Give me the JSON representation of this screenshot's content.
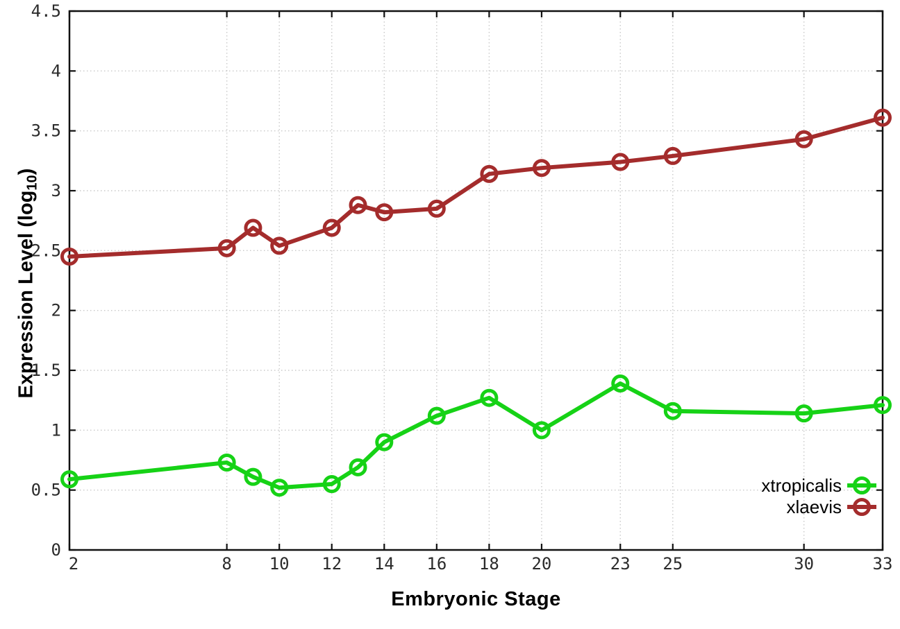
{
  "figure": {
    "xlabel": "Embryonic Stage",
    "ylabel_prefix": "Expression Level (log",
    "ylabel_sub": "10",
    "ylabel_suffix": ")"
  },
  "chart_data": {
    "type": "line",
    "x": [
      2,
      8,
      9,
      10,
      12,
      13,
      14,
      16,
      18,
      20,
      23,
      25,
      30,
      33
    ],
    "series": [
      {
        "name": "xtropicalis",
        "color": "#16d216",
        "values": [
          0.59,
          0.73,
          0.61,
          0.52,
          0.55,
          0.69,
          0.9,
          1.12,
          1.27,
          1.0,
          1.39,
          1.16,
          1.14,
          1.21
        ]
      },
      {
        "name": "xlaevis",
        "color": "#a42c2c",
        "values": [
          2.45,
          2.52,
          2.69,
          2.54,
          2.69,
          2.88,
          2.82,
          2.85,
          3.14,
          3.19,
          3.24,
          3.29,
          3.43,
          3.61
        ]
      }
    ],
    "title": "",
    "xlabel": "Embryonic Stage",
    "ylabel": "Expression Level (log10)",
    "xlim": [
      2,
      33
    ],
    "ylim": [
      0,
      4.5
    ],
    "xticks": [
      2,
      8,
      10,
      12,
      14,
      16,
      18,
      20,
      23,
      25,
      30,
      33
    ],
    "xtick_labels": [
      "2",
      "8",
      "10",
      "12",
      "14",
      "16",
      "18",
      "20",
      "23",
      "25",
      "30",
      "33"
    ],
    "yticks": [
      0,
      0.5,
      1,
      1.5,
      2,
      2.5,
      3,
      3.5,
      4,
      4.5
    ],
    "ytick_labels": [
      "0",
      "0.5",
      "1",
      "1.5",
      "2",
      "2.5",
      "3",
      "3.5",
      "4",
      "4.5"
    ],
    "grid": true,
    "legend_position": "bottom-right",
    "style": {
      "grid_color": "#c9c9c9",
      "border_color": "#111111",
      "tick_label_color": "#2b2b2b",
      "legend_text_color": "#000000"
    }
  }
}
